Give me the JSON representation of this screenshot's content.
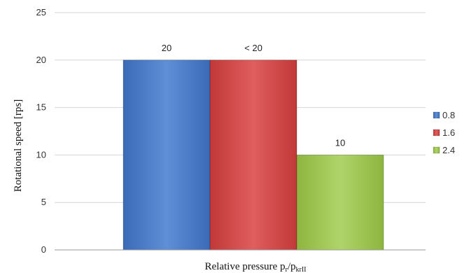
{
  "chart_data": {
    "type": "bar",
    "title": "",
    "categories": [
      ""
    ],
    "series": [
      {
        "name": "0.8",
        "values": [
          20
        ],
        "label": "20",
        "color": "#4a7bc6"
      },
      {
        "name": "1.6",
        "values": [
          20
        ],
        "label": "< 20",
        "color": "#d04545"
      },
      {
        "name": "2.4",
        "values": [
          10
        ],
        "label": "10",
        "color": "#9cc24e"
      }
    ],
    "xlabel": {
      "main": "Relative pressure p",
      "sub1": "r",
      "sep": "/p",
      "sub2": "krII"
    },
    "ylabel": "Rotational speed [rps]",
    "ylim": [
      0,
      25
    ],
    "yticks": [
      0,
      5,
      10,
      15,
      20,
      25
    ],
    "grid": true,
    "legend_position": "right"
  }
}
